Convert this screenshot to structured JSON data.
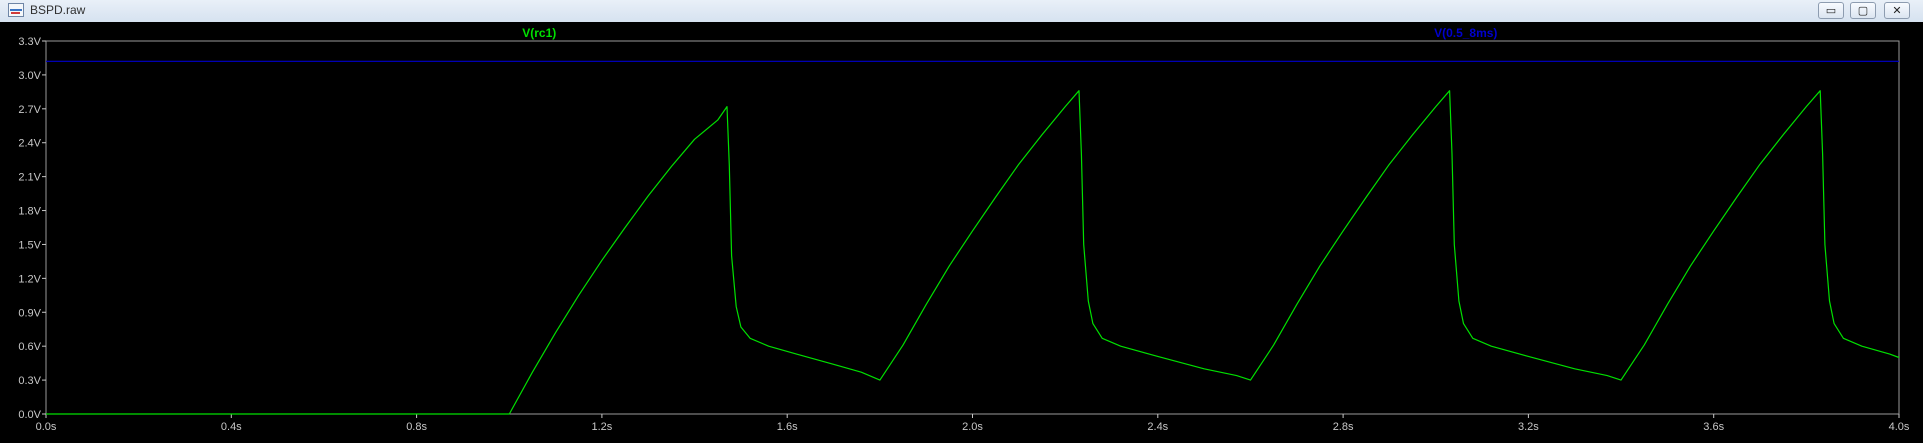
{
  "window": {
    "title": "BSPD.raw",
    "controls": {
      "minimize": "▭",
      "maximize": "▢",
      "close": "✕"
    }
  },
  "colors": {
    "plot_background": "#000000",
    "axis_text": "#c8c8c8",
    "trace_rc1": "#00e000",
    "trace_05_8ms": "#0000cd",
    "axis_line": "#9a9a9a"
  },
  "chart_data": {
    "type": "line",
    "x_axis": {
      "range": [
        0,
        4
      ],
      "ticks": [
        0,
        0.4,
        0.8,
        1.2,
        1.6,
        2.0,
        2.4,
        2.8,
        3.2,
        3.6,
        4.0
      ],
      "tick_labels": [
        "0.0s",
        "0.4s",
        "0.8s",
        "1.2s",
        "1.6s",
        "2.0s",
        "2.4s",
        "2.8s",
        "3.2s",
        "3.6s",
        "4.0s"
      ]
    },
    "y_axis": {
      "range": [
        0,
        3.3
      ],
      "ticks": [
        0,
        0.3,
        0.6,
        0.9,
        1.2,
        1.5,
        1.8,
        2.1,
        2.4,
        2.7,
        3.0,
        3.3
      ],
      "tick_labels": [
        "0.0V",
        "0.3V",
        "0.6V",
        "0.9V",
        "1.2V",
        "1.5V",
        "1.8V",
        "2.1V",
        "2.4V",
        "2.7V",
        "3.0V",
        "3.3V"
      ]
    },
    "grid": false,
    "series": [
      {
        "name": "V(rc1)",
        "color": "#00e000",
        "points": [
          [
            0.0,
            0.0
          ],
          [
            1.0,
            0.0
          ],
          [
            1.05,
            0.37
          ],
          [
            1.1,
            0.72
          ],
          [
            1.15,
            1.05
          ],
          [
            1.2,
            1.36
          ],
          [
            1.25,
            1.65
          ],
          [
            1.3,
            1.93
          ],
          [
            1.35,
            2.19
          ],
          [
            1.4,
            2.43
          ],
          [
            1.45,
            2.6
          ],
          [
            1.47,
            2.72
          ],
          [
            1.475,
            2.2
          ],
          [
            1.48,
            1.4
          ],
          [
            1.49,
            0.95
          ],
          [
            1.5,
            0.77
          ],
          [
            1.52,
            0.67
          ],
          [
            1.56,
            0.6
          ],
          [
            1.62,
            0.53
          ],
          [
            1.7,
            0.44
          ],
          [
            1.76,
            0.37
          ],
          [
            1.8,
            0.3
          ],
          [
            1.85,
            0.61
          ],
          [
            1.9,
            0.97
          ],
          [
            1.95,
            1.31
          ],
          [
            2.0,
            1.62
          ],
          [
            2.05,
            1.92
          ],
          [
            2.1,
            2.21
          ],
          [
            2.15,
            2.47
          ],
          [
            2.2,
            2.72
          ],
          [
            2.23,
            2.86
          ],
          [
            2.235,
            2.3
          ],
          [
            2.24,
            1.5
          ],
          [
            2.25,
            1.0
          ],
          [
            2.26,
            0.8
          ],
          [
            2.28,
            0.67
          ],
          [
            2.32,
            0.6
          ],
          [
            2.4,
            0.51
          ],
          [
            2.5,
            0.4
          ],
          [
            2.57,
            0.34
          ],
          [
            2.6,
            0.3
          ],
          [
            2.65,
            0.61
          ],
          [
            2.7,
            0.97
          ],
          [
            2.75,
            1.31
          ],
          [
            2.8,
            1.62
          ],
          [
            2.85,
            1.92
          ],
          [
            2.9,
            2.21
          ],
          [
            2.95,
            2.47
          ],
          [
            3.0,
            2.72
          ],
          [
            3.03,
            2.86
          ],
          [
            3.035,
            2.3
          ],
          [
            3.04,
            1.5
          ],
          [
            3.05,
            1.0
          ],
          [
            3.06,
            0.8
          ],
          [
            3.08,
            0.67
          ],
          [
            3.12,
            0.6
          ],
          [
            3.2,
            0.51
          ],
          [
            3.3,
            0.4
          ],
          [
            3.37,
            0.34
          ],
          [
            3.4,
            0.3
          ],
          [
            3.45,
            0.61
          ],
          [
            3.5,
            0.97
          ],
          [
            3.55,
            1.31
          ],
          [
            3.6,
            1.62
          ],
          [
            3.65,
            1.92
          ],
          [
            3.7,
            2.21
          ],
          [
            3.75,
            2.47
          ],
          [
            3.8,
            2.72
          ],
          [
            3.83,
            2.86
          ],
          [
            3.835,
            2.3
          ],
          [
            3.84,
            1.5
          ],
          [
            3.85,
            1.0
          ],
          [
            3.86,
            0.8
          ],
          [
            3.88,
            0.67
          ],
          [
            3.92,
            0.6
          ],
          [
            3.98,
            0.53
          ],
          [
            4.0,
            0.5
          ]
        ]
      },
      {
        "name": "V(0.5_8ms)",
        "color": "#0000cd",
        "points": [
          [
            0.0,
            3.12
          ],
          [
            4.0,
            3.12
          ]
        ]
      }
    ]
  }
}
